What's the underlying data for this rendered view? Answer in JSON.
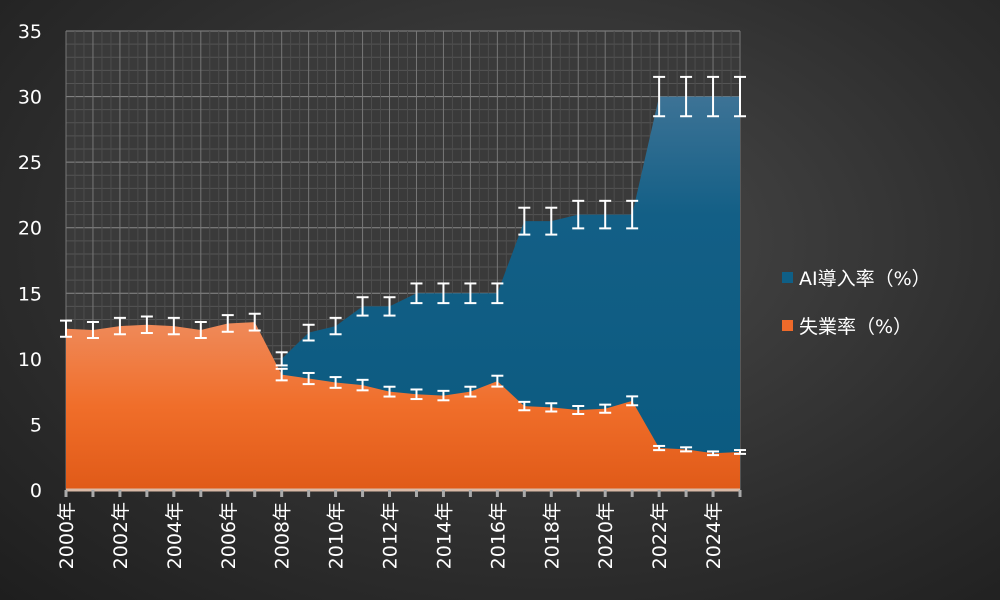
{
  "chart_data": {
    "type": "area",
    "title": "",
    "xlabel": "",
    "ylabel": "",
    "ylim": [
      0,
      35
    ],
    "yticks": [
      0,
      5,
      10,
      15,
      20,
      25,
      30,
      35
    ],
    "x": [
      2000,
      2001,
      2002,
      2003,
      2004,
      2005,
      2006,
      2007,
      2008,
      2009,
      2010,
      2011,
      2012,
      2013,
      2014,
      2015,
      2016,
      2017,
      2018,
      2019,
      2020,
      2021,
      2022,
      2023,
      2024,
      2025
    ],
    "xtick_labels": [
      "2000年",
      "2002年",
      "2004年",
      "2006年",
      "2008年",
      "2010年",
      "2012年",
      "2014年",
      "2016年",
      "2018年",
      "2020年",
      "2022年",
      "2024年"
    ],
    "grid": true,
    "legend_position": "right",
    "error_bars": "±5%",
    "series": [
      {
        "name": "AI導入率（%）",
        "color": "#0f5f86",
        "values": [
          null,
          null,
          null,
          null,
          null,
          null,
          null,
          null,
          10,
          12,
          12.5,
          14,
          14,
          15,
          15,
          15,
          15,
          20.5,
          20.5,
          21,
          21,
          21,
          30,
          30,
          30,
          30
        ]
      },
      {
        "name": "失業率（%）",
        "color": "#ee6a2a",
        "values": [
          12.3,
          12.2,
          12.5,
          12.6,
          12.5,
          12.2,
          12.7,
          12.8,
          8.8,
          8.5,
          8.2,
          8.0,
          7.5,
          7.3,
          7.2,
          7.5,
          8.3,
          6.4,
          6.3,
          6.1,
          6.2,
          6.8,
          3.2,
          3.1,
          2.8,
          2.9
        ]
      }
    ]
  }
}
